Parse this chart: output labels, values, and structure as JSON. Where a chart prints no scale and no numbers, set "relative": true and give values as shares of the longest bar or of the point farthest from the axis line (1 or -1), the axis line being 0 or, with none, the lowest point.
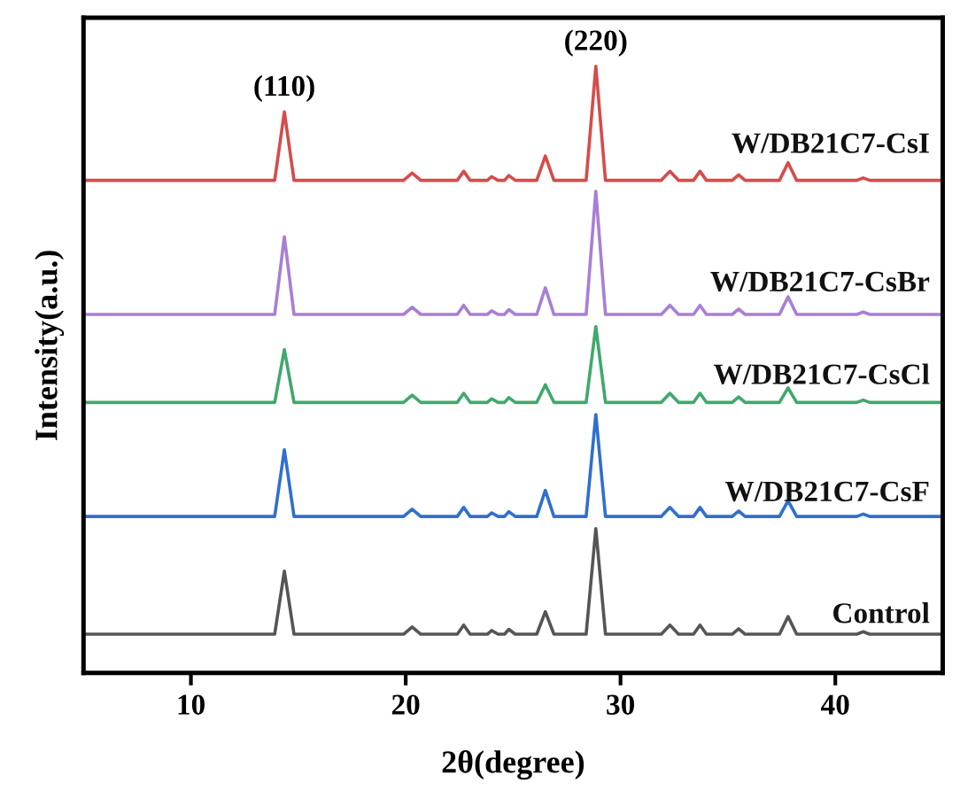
{
  "chart_data": {
    "type": "line",
    "relative": true,
    "xlabel": "2θ(degree)",
    "ylabel": "Intensity(a.u.)",
    "x": [
      5,
      13.9,
      14.35,
      14.8,
      19.9,
      20.3,
      20.7,
      22.4,
      22.7,
      23.0,
      23.8,
      24.0,
      24.3,
      24.6,
      24.8,
      25.1,
      26.1,
      26.5,
      26.9,
      28.4,
      28.85,
      29.3,
      31.9,
      32.3,
      32.7,
      33.4,
      33.7,
      34.0,
      35.2,
      35.5,
      35.8,
      37.4,
      37.8,
      38.2,
      41.0,
      41.3,
      41.6,
      45
    ],
    "xlim": [
      5,
      45
    ],
    "xticks": [
      10,
      20,
      30,
      40
    ],
    "grid": false,
    "legend": false,
    "marker": "none",
    "line_style": "solid",
    "series": [
      {
        "name": "Control",
        "color": "#555555",
        "values": [
          0.064,
          0.064,
          0.168,
          0.064,
          0.064,
          0.076,
          0.064,
          0.064,
          0.079,
          0.064,
          0.064,
          0.07,
          0.064,
          0.064,
          0.072,
          0.064,
          0.064,
          0.101,
          0.064,
          0.064,
          0.238,
          0.064,
          0.064,
          0.079,
          0.064,
          0.064,
          0.079,
          0.064,
          0.064,
          0.073,
          0.064,
          0.064,
          0.093,
          0.064,
          0.064,
          0.068,
          0.064,
          0.064
        ]
      },
      {
        "name": "W/DB21C7-CsF",
        "color": "#2f6fcf",
        "values": [
          0.258,
          0.258,
          0.368,
          0.258,
          0.258,
          0.27,
          0.258,
          0.258,
          0.273,
          0.258,
          0.258,
          0.264,
          0.258,
          0.258,
          0.266,
          0.258,
          0.258,
          0.301,
          0.258,
          0.258,
          0.426,
          0.258,
          0.258,
          0.273,
          0.258,
          0.258,
          0.273,
          0.258,
          0.258,
          0.267,
          0.258,
          0.258,
          0.284,
          0.258,
          0.258,
          0.262,
          0.258,
          0.258
        ]
      },
      {
        "name": "W/DB21C7-CsCl",
        "color": "#3fa96b",
        "values": [
          0.446,
          0.446,
          0.533,
          0.446,
          0.446,
          0.458,
          0.446,
          0.446,
          0.461,
          0.446,
          0.446,
          0.452,
          0.446,
          0.446,
          0.454,
          0.446,
          0.446,
          0.475,
          0.446,
          0.446,
          0.571,
          0.446,
          0.446,
          0.461,
          0.446,
          0.446,
          0.461,
          0.446,
          0.446,
          0.455,
          0.446,
          0.446,
          0.47,
          0.446,
          0.446,
          0.45,
          0.446,
          0.446
        ]
      },
      {
        "name": "W/DB21C7-CsBr",
        "color": "#a77fd6",
        "values": [
          0.591,
          0.591,
          0.719,
          0.591,
          0.591,
          0.603,
          0.591,
          0.591,
          0.606,
          0.591,
          0.591,
          0.597,
          0.591,
          0.591,
          0.599,
          0.591,
          0.591,
          0.635,
          0.591,
          0.591,
          0.794,
          0.591,
          0.591,
          0.606,
          0.591,
          0.591,
          0.606,
          0.591,
          0.591,
          0.6,
          0.591,
          0.591,
          0.62,
          0.591,
          0.591,
          0.595,
          0.591,
          0.591
        ]
      },
      {
        "name": "W/DB21C7-CsI",
        "color": "#d64b4b",
        "values": [
          0.812,
          0.812,
          0.925,
          0.812,
          0.812,
          0.824,
          0.812,
          0.812,
          0.827,
          0.812,
          0.812,
          0.818,
          0.812,
          0.812,
          0.82,
          0.812,
          0.812,
          0.852,
          0.812,
          0.812,
          1.0,
          0.812,
          0.812,
          0.827,
          0.812,
          0.812,
          0.827,
          0.812,
          0.812,
          0.821,
          0.812,
          0.812,
          0.841,
          0.812,
          0.812,
          0.816,
          0.812,
          0.812
        ]
      }
    ],
    "annotations": [
      {
        "text": "(110)",
        "x": 14.35,
        "y": 0.925
      },
      {
        "text": "(220)",
        "x": 28.85,
        "y": 1.0
      }
    ]
  }
}
